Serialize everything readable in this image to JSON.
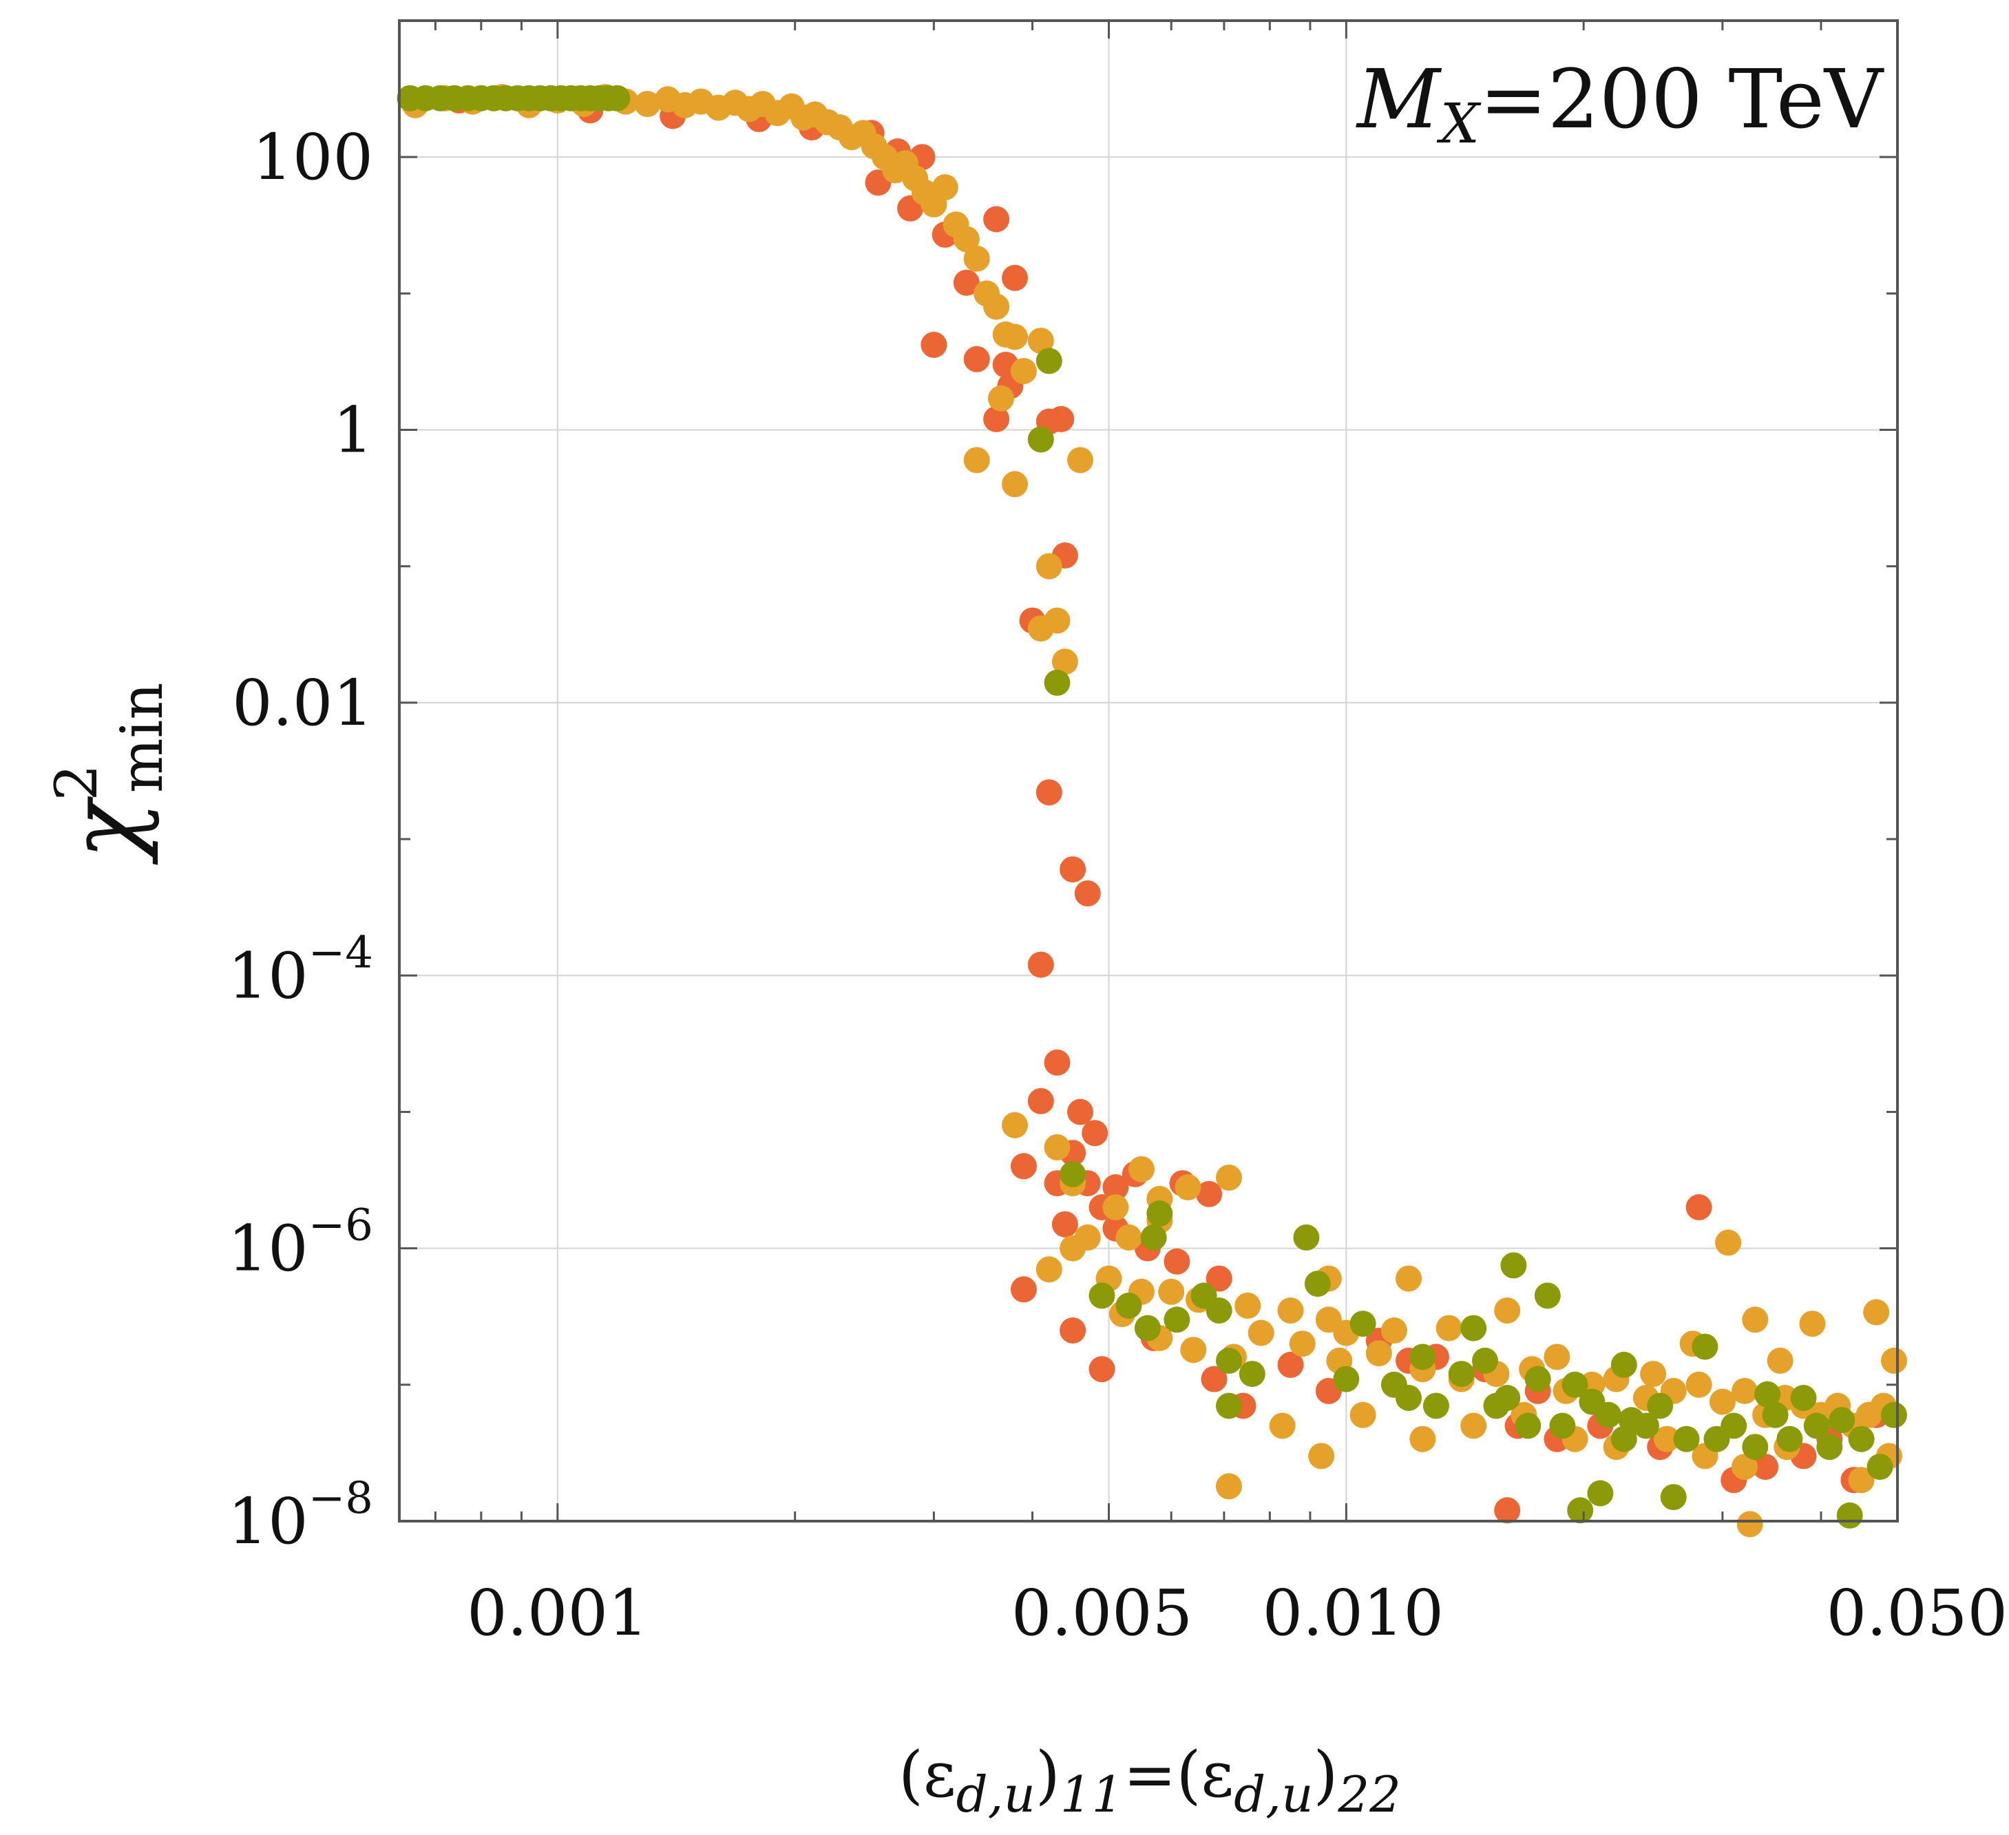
{
  "chart_data": {
    "type": "scatter",
    "title": "",
    "annotation": {
      "symbol": "M",
      "subscript": "X",
      "text": "=200 TeV"
    },
    "xlabel": "(εd,u)11=(εd,u)22",
    "xlabel_parts": {
      "open1": "(ε",
      "sub1": "d,u",
      "close1": ")",
      "idx1": "11",
      "eq": "=(ε",
      "sub2": "d,u",
      "close2": ")",
      "idx2": "22"
    },
    "ylabel": "χ²min",
    "ylabel_parts": {
      "base": "χ",
      "sup": "2",
      "sub": "min"
    },
    "xscale": "log",
    "yscale": "log",
    "xlim": [
      0.00063,
      0.05
    ],
    "ylim": [
      1e-08,
      1000
    ],
    "grid": true,
    "xticks": [
      {
        "value": 0.001,
        "label": "0.001"
      },
      {
        "value": 0.005,
        "label": "0.005"
      },
      {
        "value": 0.01,
        "label": "0.010"
      },
      {
        "value": 0.05,
        "label": "0.050"
      }
    ],
    "yticks": [
      {
        "value": 100,
        "base": "100",
        "exp": ""
      },
      {
        "value": 1,
        "base": "1",
        "exp": ""
      },
      {
        "value": 0.01,
        "base": "0.01",
        "exp": ""
      },
      {
        "value": 0.0001,
        "base": "10",
        "exp": "−4"
      },
      {
        "value": 1e-06,
        "base": "10",
        "exp": "−6"
      },
      {
        "value": 1e-08,
        "base": "10",
        "exp": "−8"
      }
    ],
    "series": [
      {
        "name": "orange-red",
        "color": "#ec6535",
        "points": [
          [
            0.00075,
            260
          ],
          [
            0.0011,
            220
          ],
          [
            0.0014,
            200
          ],
          [
            0.0018,
            190
          ],
          [
            0.0021,
            165
          ],
          [
            0.0025,
            150
          ],
          [
            0.0027,
            110
          ],
          [
            0.0029,
            100
          ],
          [
            0.00255,
            65
          ],
          [
            0.0028,
            42
          ],
          [
            0.0031,
            27
          ],
          [
            0.0036,
            35
          ],
          [
            0.0038,
            13
          ],
          [
            0.0033,
            12
          ],
          [
            0.0037,
            3
          ],
          [
            0.003,
            4.2
          ],
          [
            0.0034,
            3.3
          ],
          [
            0.0036,
            1.2
          ],
          [
            0.00375,
            2.1
          ],
          [
            0.0042,
            1.15
          ],
          [
            0.00435,
            1.2
          ],
          [
            0.0044,
            0.12
          ],
          [
            0.004,
            0.04
          ],
          [
            0.0042,
            0.0022
          ],
          [
            0.0045,
            0.0006
          ],
          [
            0.0047,
            0.0004
          ],
          [
            0.0041,
            0.00012
          ],
          [
            0.0043,
            2.3e-05
          ],
          [
            0.0041,
            1.2e-05
          ],
          [
            0.0046,
            1e-05
          ],
          [
            0.0048,
            7e-06
          ],
          [
            0.0045,
            5e-06
          ],
          [
            0.0039,
            4e-06
          ],
          [
            0.0043,
            3e-06
          ],
          [
            0.0047,
            3e-06
          ],
          [
            0.0049,
            2e-06
          ],
          [
            0.0051,
            2.8e-06
          ],
          [
            0.0054,
            3.5e-06
          ],
          [
            0.0062,
            3e-06
          ],
          [
            0.0067,
            2.5e-06
          ],
          [
            0.0044,
            1.5e-06
          ],
          [
            0.0051,
            1.4e-06
          ],
          [
            0.0056,
            1e-06
          ],
          [
            0.0061,
            8e-07
          ],
          [
            0.0069,
            6e-07
          ],
          [
            0.0039,
            5e-07
          ],
          [
            0.0045,
            2.5e-07
          ],
          [
            0.0049,
            1.3e-07
          ],
          [
            0.0057,
            2.2e-07
          ],
          [
            0.0068,
            1.1e-07
          ],
          [
            0.0074,
            7e-08
          ],
          [
            0.0085,
            1.4e-07
          ],
          [
            0.0095,
            9e-08
          ],
          [
            0.011,
            2.1e-07
          ],
          [
            0.012,
            1.5e-07
          ],
          [
            0.013,
            1.6e-07
          ],
          [
            0.015,
            1.3e-07
          ],
          [
            0.016,
            1.2e-08
          ],
          [
            0.0165,
            5e-08
          ],
          [
            0.0185,
            4e-08
          ],
          [
            0.021,
            5e-08
          ],
          [
            0.025,
            3.5e-08
          ],
          [
            0.028,
            2e-06
          ],
          [
            0.031,
            2e-08
          ],
          [
            0.034,
            2.5e-08
          ],
          [
            0.038,
            3e-08
          ],
          [
            0.041,
            4e-08
          ],
          [
            0.044,
            2e-08
          ],
          [
            0.047,
            6e-08
          ],
          [
            0.0175,
            9e-08
          ]
        ]
      },
      {
        "name": "orange",
        "color": "#e5a12a",
        "points": [
          [
            0.00066,
            240
          ],
          [
            0.00072,
            270
          ],
          [
            0.00078,
            255
          ],
          [
            0.00085,
            275
          ],
          [
            0.00092,
            240
          ],
          [
            0.001,
            260
          ],
          [
            0.00108,
            245
          ],
          [
            0.00115,
            275
          ],
          [
            0.00122,
            255
          ],
          [
            0.0013,
            245
          ],
          [
            0.00138,
            265
          ],
          [
            0.00145,
            240
          ],
          [
            0.00152,
            255
          ],
          [
            0.0016,
            230
          ],
          [
            0.00168,
            250
          ],
          [
            0.00175,
            225
          ],
          [
            0.00182,
            245
          ],
          [
            0.0019,
            210
          ],
          [
            0.00198,
            235
          ],
          [
            0.00205,
            195
          ],
          [
            0.00212,
            205
          ],
          [
            0.0022,
            180
          ],
          [
            0.00228,
            165
          ],
          [
            0.00236,
            140
          ],
          [
            0.00244,
            150
          ],
          [
            0.00252,
            120
          ],
          [
            0.0026,
            100
          ],
          [
            0.00268,
            80
          ],
          [
            0.00276,
            90
          ],
          [
            0.00284,
            70
          ],
          [
            0.00292,
            55
          ],
          [
            0.003,
            45
          ],
          [
            0.0031,
            60
          ],
          [
            0.0032,
            32
          ],
          [
            0.0033,
            25
          ],
          [
            0.0034,
            18
          ],
          [
            0.0035,
            10
          ],
          [
            0.0036,
            8
          ],
          [
            0.0037,
            5
          ],
          [
            0.0038,
            4.8
          ],
          [
            0.0039,
            2.7
          ],
          [
            0.0041,
            4.5
          ],
          [
            0.00365,
            1.7
          ],
          [
            0.0034,
            0.6
          ],
          [
            0.0038,
            0.4
          ],
          [
            0.0046,
            0.6
          ],
          [
            0.0042,
            0.1
          ],
          [
            0.0041,
            0.035
          ],
          [
            0.0043,
            0.04
          ],
          [
            0.0044,
            0.02
          ],
          [
            0.0038,
            8e-06
          ],
          [
            0.0043,
            5.5e-06
          ],
          [
            0.0045,
            3e-06
          ],
          [
            0.0051,
            2e-06
          ],
          [
            0.0058,
            2.3e-06
          ],
          [
            0.0055,
            3.8e-06
          ],
          [
            0.0063,
            2.8e-06
          ],
          [
            0.0071,
            3.3e-06
          ],
          [
            0.0058,
            1.6e-06
          ],
          [
            0.0053,
            1.2e-06
          ],
          [
            0.0047,
            1.2e-06
          ],
          [
            0.0042,
            7e-07
          ],
          [
            0.005,
            6e-07
          ],
          [
            0.0055,
            4.8e-07
          ],
          [
            0.006,
            4.8e-07
          ],
          [
            0.0065,
            4.2e-07
          ],
          [
            0.0075,
            3.8e-07
          ],
          [
            0.0085,
            3.5e-07
          ],
          [
            0.0095,
            3e-07
          ],
          [
            0.01,
            2.4e-07
          ],
          [
            0.0052,
            3.3e-07
          ],
          [
            0.0058,
            2.2e-07
          ],
          [
            0.0064,
            1.8e-07
          ],
          [
            0.0072,
            1.6e-07
          ],
          [
            0.0078,
            2.4e-07
          ],
          [
            0.0088,
            2e-07
          ],
          [
            0.0098,
            1.5e-07
          ],
          [
            0.011,
            1.7e-07
          ],
          [
            0.0125,
            1.3e-07
          ],
          [
            0.014,
            1.1e-07
          ],
          [
            0.0155,
            1.2e-07
          ],
          [
            0.0172,
            1.3e-07
          ],
          [
            0.019,
            9e-08
          ],
          [
            0.0205,
            1e-07
          ],
          [
            0.022,
            1.1e-07
          ],
          [
            0.024,
            8e-08
          ],
          [
            0.026,
            9e-08
          ],
          [
            0.028,
            1e-07
          ],
          [
            0.03,
            7.5e-08
          ],
          [
            0.032,
            9e-08
          ],
          [
            0.034,
            6e-08
          ],
          [
            0.036,
            8e-08
          ],
          [
            0.038,
            7e-08
          ],
          [
            0.04,
            6e-08
          ],
          [
            0.042,
            7e-08
          ],
          [
            0.044,
            5e-08
          ],
          [
            0.046,
            6e-08
          ],
          [
            0.048,
            7e-08
          ],
          [
            0.0495,
            1.5e-07
          ],
          [
            0.047,
            3.4e-07
          ],
          [
            0.012,
            6e-07
          ],
          [
            0.0095,
            6e-07
          ],
          [
            0.0115,
            2.5e-07
          ],
          [
            0.0135,
            2.6e-07
          ],
          [
            0.016,
            3.5e-07
          ],
          [
            0.0185,
            1.6e-07
          ],
          [
            0.0245,
            1.2e-07
          ],
          [
            0.0275,
            2e-07
          ],
          [
            0.0305,
            1.1e-06
          ],
          [
            0.033,
            3e-07
          ],
          [
            0.0355,
            1.5e-07
          ],
          [
            0.039,
            2.8e-07
          ],
          [
            0.0083,
            5e-08
          ],
          [
            0.0093,
            3e-08
          ],
          [
            0.0105,
            6e-08
          ],
          [
            0.0125,
            4e-08
          ],
          [
            0.0145,
            5e-08
          ],
          [
            0.0168,
            6e-08
          ],
          [
            0.0195,
            4e-08
          ],
          [
            0.022,
            3.5e-08
          ],
          [
            0.0255,
            4e-08
          ],
          [
            0.0285,
            3e-08
          ],
          [
            0.032,
            2.5e-08
          ],
          [
            0.0362,
            3.5e-08
          ],
          [
            0.045,
            2e-08
          ],
          [
            0.0045,
            1e-06
          ],
          [
            0.0071,
            1.8e-08
          ],
          [
            0.0325,
            9.5e-09
          ],
          [
            0.0488,
            3e-08
          ]
        ]
      },
      {
        "name": "olive",
        "color": "#8c9a09",
        "points": [
          [
            0.00065,
            270
          ],
          [
            0.00068,
            270
          ],
          [
            0.00071,
            270
          ],
          [
            0.00074,
            270
          ],
          [
            0.00077,
            270
          ],
          [
            0.0008,
            270
          ],
          [
            0.00083,
            270
          ],
          [
            0.00086,
            270
          ],
          [
            0.00089,
            270
          ],
          [
            0.00092,
            270
          ],
          [
            0.00095,
            270
          ],
          [
            0.00098,
            270
          ],
          [
            0.00101,
            270
          ],
          [
            0.00104,
            270
          ],
          [
            0.00107,
            270
          ],
          [
            0.0011,
            270
          ],
          [
            0.00113,
            270
          ],
          [
            0.00116,
            270
          ],
          [
            0.00119,
            270
          ],
          [
            0.0042,
            3.2
          ],
          [
            0.0041,
            0.85
          ],
          [
            0.0043,
            0.014
          ],
          [
            0.0045,
            3.5e-06
          ],
          [
            0.0058,
            1.8e-06
          ],
          [
            0.0057,
            1.2e-06
          ],
          [
            0.0049,
            4.5e-07
          ],
          [
            0.0053,
            3.8e-07
          ],
          [
            0.0056,
            2.6e-07
          ],
          [
            0.0061,
            3e-07
          ],
          [
            0.0066,
            4.5e-07
          ],
          [
            0.0069,
            3.5e-07
          ],
          [
            0.0071,
            1.5e-07
          ],
          [
            0.0076,
            1.2e-07
          ],
          [
            0.0071,
            7e-08
          ],
          [
            0.0089,
            1.2e-06
          ],
          [
            0.0092,
            5.5e-07
          ],
          [
            0.01,
            1.1e-07
          ],
          [
            0.0105,
            2.8e-07
          ],
          [
            0.0115,
            1e-07
          ],
          [
            0.012,
            8e-08
          ],
          [
            0.0125,
            1.6e-07
          ],
          [
            0.013,
            7e-08
          ],
          [
            0.014,
            1.2e-07
          ],
          [
            0.0145,
            2.6e-07
          ],
          [
            0.015,
            1.5e-07
          ],
          [
            0.0155,
            7e-08
          ],
          [
            0.016,
            8e-08
          ],
          [
            0.0163,
            7.5e-07
          ],
          [
            0.017,
            5e-08
          ],
          [
            0.0175,
            1.1e-07
          ],
          [
            0.018,
            4.5e-07
          ],
          [
            0.0188,
            5e-08
          ],
          [
            0.0195,
            1e-07
          ],
          [
            0.0205,
            7.5e-08
          ],
          [
            0.021,
            1.6e-08
          ],
          [
            0.0215,
            6e-08
          ],
          [
            0.0225,
            1.4e-07
          ],
          [
            0.023,
            5.5e-08
          ],
          [
            0.024,
            5e-08
          ],
          [
            0.025,
            7e-08
          ],
          [
            0.026,
            1.5e-08
          ],
          [
            0.027,
            4e-08
          ],
          [
            0.0285,
            1.9e-07
          ],
          [
            0.0295,
            4e-08
          ],
          [
            0.031,
            5e-08
          ],
          [
            0.033,
            3.5e-08
          ],
          [
            0.035,
            6e-08
          ],
          [
            0.0365,
            4e-08
          ],
          [
            0.038,
            8e-08
          ],
          [
            0.0395,
            5e-08
          ],
          [
            0.041,
            3.5e-08
          ],
          [
            0.0425,
            5.5e-08
          ],
          [
            0.0435,
            1.1e-08
          ],
          [
            0.045,
            4e-08
          ],
          [
            0.0475,
            2.5e-08
          ],
          [
            0.0495,
            6e-08
          ],
          [
            0.0198,
            1.2e-08
          ],
          [
            0.0342,
            8.5e-08
          ],
          [
            0.0225,
            4e-08
          ]
        ]
      }
    ]
  }
}
